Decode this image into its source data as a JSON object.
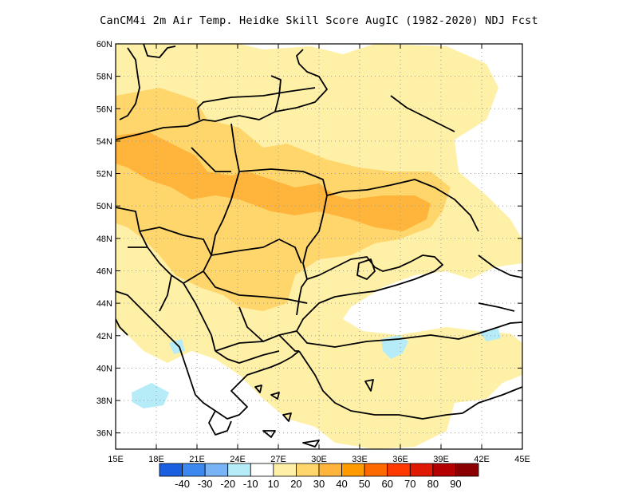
{
  "title": "CanCM4i  2m Air Temp. Heidke Skill Score AugIC (1982-2020) NDJ Fcst",
  "map": {
    "lon_range": [
      15,
      45
    ],
    "lat_range": [
      35,
      60
    ],
    "lon_ticks": [
      "15E",
      "18E",
      "21E",
      "24E",
      "27E",
      "30E",
      "33E",
      "36E",
      "39E",
      "42E",
      "45E"
    ],
    "lat_ticks": [
      "36N",
      "38N",
      "40N",
      "42N",
      "44N",
      "46N",
      "48N",
      "50N",
      "52N",
      "54N",
      "56N",
      "58N",
      "60N"
    ],
    "grid": "dotted"
  },
  "colorbar": {
    "labels": [
      "-40",
      "-30",
      "-20",
      "-10",
      "10",
      "20",
      "30",
      "40",
      "50",
      "60",
      "70",
      "80",
      "90"
    ],
    "colors": [
      "#1a5fe0",
      "#3d88ee",
      "#78b4f5",
      "#b5ecf7",
      "#ffffff",
      "#fff0a8",
      "#ffd66b",
      "#ffb53c",
      "#ff9a00",
      "#ff6a00",
      "#ff3a00",
      "#e01a00",
      "#b40000",
      "#8a0000"
    ]
  },
  "legend_values": {
    "light_yellow": "10-20",
    "yellow": "20-30",
    "orange": "30-40",
    "light_blue": "-10 to -20"
  }
}
